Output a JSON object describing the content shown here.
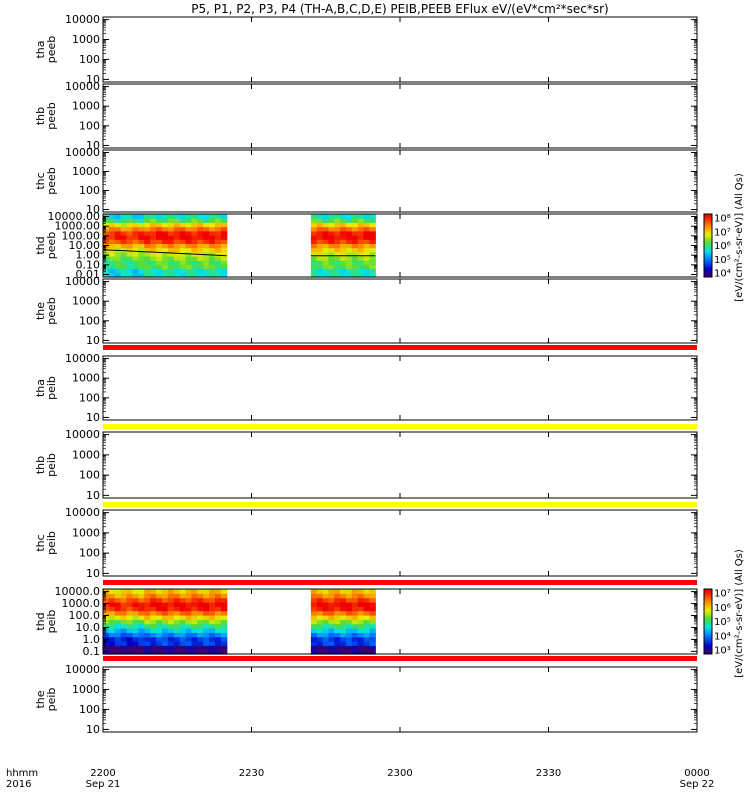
{
  "figure": {
    "title": "P5, P1, P2, P3, P4 (TH-A,B,C,D,E) PEIB,PEEB EFlux eV/(eV*cm²*sec*sr)",
    "time_label_line1": "hhmm",
    "time_label_line2": "2016"
  },
  "colors": {
    "red_band": "#ff0000",
    "yellow_band": "#ffff00",
    "frame": "#000000"
  },
  "chart_data": {
    "type": "heatmap",
    "x_axis": {
      "range": [
        "2016-09-21 22:00",
        "2016-09-22 00:00"
      ],
      "ticks": [
        {
          "label": "2200",
          "date": "Sep 21"
        },
        {
          "label": "2230",
          "date": ""
        },
        {
          "label": "2300",
          "date": ""
        },
        {
          "label": "2330",
          "date": ""
        },
        {
          "label": "0000",
          "date": "Sep 22"
        }
      ]
    },
    "panels": [
      {
        "probe": "tha",
        "instrument": "peeb",
        "yticks": [
          "10",
          "100",
          "1000",
          "10000"
        ],
        "ylog": true,
        "has_data": false,
        "band_below": ""
      },
      {
        "probe": "thb",
        "instrument": "peeb",
        "yticks": [
          "10",
          "100",
          "1000",
          "10000"
        ],
        "ylog": true,
        "has_data": false,
        "band_below": ""
      },
      {
        "probe": "thc",
        "instrument": "peeb",
        "yticks": [
          "10",
          "100",
          "1000",
          "10000"
        ],
        "ylog": true,
        "has_data": false,
        "band_below": ""
      },
      {
        "probe": "thd",
        "instrument": "peeb",
        "yticks": [
          "0.01",
          "0.10",
          "1.00",
          "10.00",
          "100.00",
          "1000.00",
          "10000.00"
        ],
        "ylog": true,
        "has_data": true,
        "data_intervals": [
          [
            "22:00",
            "22:25"
          ],
          [
            "22:42",
            "22:55"
          ]
        ],
        "colorbar": {
          "label": "[eV/(cm²-s-sr-eV)] (All Qs)",
          "ticks": [
            "10⁴",
            "10⁵",
            "10⁶",
            "10⁷",
            "10⁸"
          ]
        },
        "band_below": ""
      },
      {
        "probe": "the",
        "instrument": "peeb",
        "yticks": [
          "10",
          "100",
          "1000",
          "10000"
        ],
        "ylog": true,
        "has_data": false,
        "band_below": "red"
      },
      {
        "probe": "tha",
        "instrument": "peib",
        "yticks": [
          "10",
          "100",
          "1000",
          "10000"
        ],
        "ylog": true,
        "has_data": false,
        "band_below": "yellow"
      },
      {
        "probe": "thb",
        "instrument": "peib",
        "yticks": [
          "10",
          "100",
          "1000",
          "10000"
        ],
        "ylog": true,
        "has_data": false,
        "band_below": "yellow"
      },
      {
        "probe": "thc",
        "instrument": "peib",
        "yticks": [
          "10",
          "100",
          "1000",
          "10000"
        ],
        "ylog": true,
        "has_data": false,
        "band_below": "red"
      },
      {
        "probe": "thd",
        "instrument": "peib",
        "yticks": [
          "0.1",
          "1.0",
          "10.0",
          "100.0",
          "1000.0",
          "10000.0"
        ],
        "ylog": true,
        "has_data": true,
        "data_intervals": [
          [
            "22:00",
            "22:25"
          ],
          [
            "22:42",
            "22:55"
          ]
        ],
        "colorbar": {
          "label": "[eV/(cm²-s-sr-eV)] (All Qs)",
          "ticks": [
            "10³",
            "10⁴",
            "10⁵",
            "10⁶",
            "10⁷"
          ]
        },
        "band_below": "red"
      },
      {
        "probe": "the",
        "instrument": "peib",
        "yticks": [
          "10",
          "100",
          "1000",
          "10000"
        ],
        "ylog": true,
        "has_data": false,
        "band_below": ""
      }
    ]
  }
}
